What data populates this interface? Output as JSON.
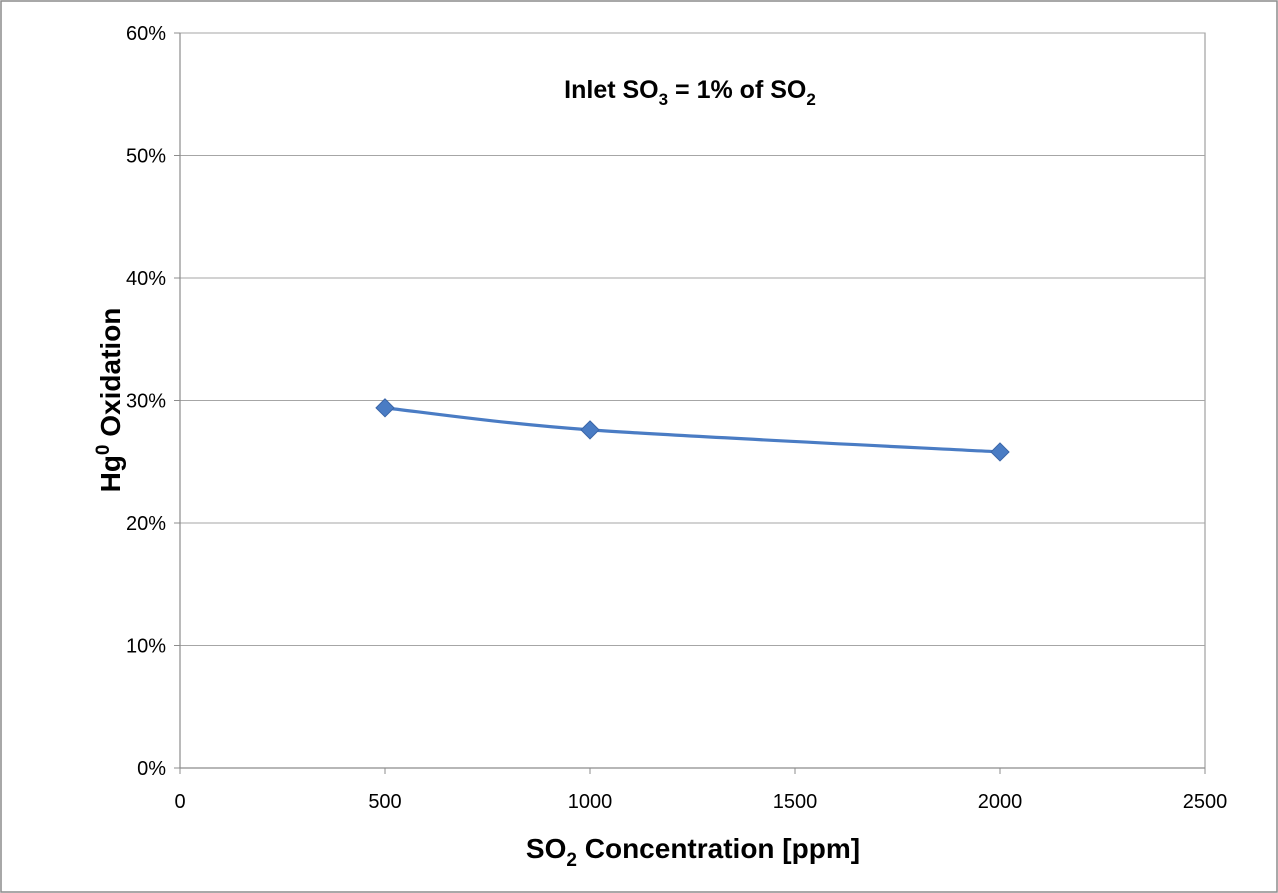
{
  "chart_data": {
    "type": "line",
    "title_parts": {
      "a": "Inlet SO",
      "a_sub": "3",
      "b": " = 1% of SO",
      "b_sub": "2"
    },
    "xlabel_parts": {
      "a": "SO",
      "a_sub": "2",
      "b": " Concentration [ppm]"
    },
    "ylabel_parts": {
      "a": "Hg",
      "a_sup": "0",
      "b": " Oxidation"
    },
    "xlim": [
      0,
      2500
    ],
    "ylim": [
      0,
      60
    ],
    "xticks": [
      0,
      500,
      1000,
      1500,
      2000,
      2500
    ],
    "yticks": [
      0,
      10,
      20,
      30,
      40,
      50,
      60
    ],
    "ytick_labels": [
      "0%",
      "10%",
      "20%",
      "30%",
      "40%",
      "50%",
      "60%"
    ],
    "grid": "horizontal",
    "series": [
      {
        "x": [
          500,
          1000,
          2000
        ],
        "y": [
          29.4,
          27.6,
          25.8
        ],
        "color": "#4a7cc4",
        "marker": "diamond"
      }
    ]
  }
}
